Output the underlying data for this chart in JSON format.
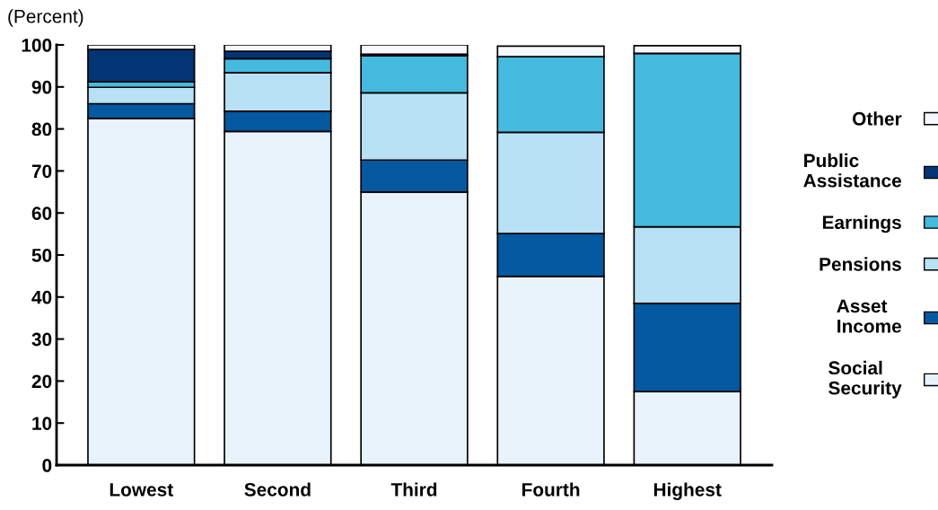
{
  "chart_data": {
    "type": "bar",
    "stacked": true,
    "ylabel": "(Percent)",
    "categories": [
      "Lowest",
      "Second",
      "Third",
      "Fourth",
      "Highest"
    ],
    "series": [
      {
        "name": "Social Security",
        "color": "#e8f3fc",
        "values": [
          82.5,
          79.4,
          65.0,
          44.9,
          17.5
        ]
      },
      {
        "name": "Asset Income",
        "color": "#0459a0",
        "values": [
          3.5,
          4.8,
          7.6,
          10.2,
          21.0
        ]
      },
      {
        "name": "Pensions",
        "color": "#b8e1f5",
        "values": [
          3.9,
          9.2,
          16.0,
          24.1,
          18.2
        ]
      },
      {
        "name": "Earnings",
        "color": "#45badf",
        "values": [
          1.3,
          3.3,
          8.8,
          18.0,
          41.3
        ]
      },
      {
        "name": "Public Assistance",
        "color": "#033575",
        "values": [
          7.7,
          1.8,
          0.4,
          null,
          null
        ]
      },
      {
        "name": "Other",
        "color": "#f5f8ff",
        "values": [
          1.1,
          1.5,
          2.2,
          2.5,
          1.8
        ]
      }
    ],
    "ylim": [
      0,
      100
    ],
    "yticks": [
      0,
      10,
      20,
      30,
      40,
      50,
      60,
      70,
      80,
      90,
      100
    ],
    "grid": false,
    "legend": "right"
  }
}
